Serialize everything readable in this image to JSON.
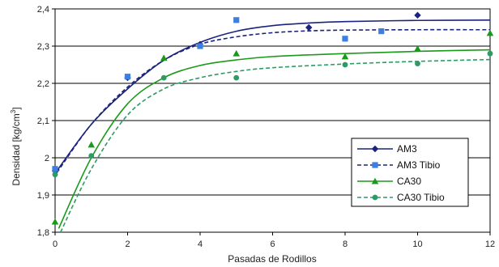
{
  "chart_data": {
    "type": "scatter",
    "title": "",
    "xlabel": "Pasadas de Rodillos",
    "ylabel": "Densidad [kg/cm",
    "ylabel_sup": "3",
    "ylabel_end": "]",
    "xlim": [
      0,
      12
    ],
    "ylim": [
      1.8,
      2.4
    ],
    "xticks": [
      0,
      2,
      4,
      6,
      8,
      10,
      12
    ],
    "yticks": [
      1.8,
      1.9,
      2.0,
      2.1,
      2.2,
      2.3,
      2.4
    ],
    "xtick_labels": [
      "0",
      "2",
      "4",
      "6",
      "8",
      "10",
      "12"
    ],
    "ytick_labels": [
      "1,8",
      "1,9",
      "2",
      "2,1",
      "2,2",
      "2,3",
      "2,4"
    ],
    "grid": "horizontal",
    "legend_position": "right",
    "series": [
      {
        "name": "AM3",
        "marker": "diamond",
        "color": "#1a237e",
        "line_style": "solid",
        "points": [
          [
            0,
            1.965
          ],
          [
            2,
            2.215
          ],
          [
            4,
            2.305
          ],
          [
            7,
            2.35
          ],
          [
            10,
            2.383
          ]
        ],
        "fit": [
          [
            0.05,
            1.965
          ],
          [
            1,
            2.09
          ],
          [
            2,
            2.185
          ],
          [
            3,
            2.262
          ],
          [
            4,
            2.31
          ],
          [
            5,
            2.34
          ],
          [
            6,
            2.355
          ],
          [
            7,
            2.362
          ],
          [
            8,
            2.366
          ],
          [
            10,
            2.369
          ],
          [
            12,
            2.37
          ]
        ]
      },
      {
        "name": "AM3 Tibio",
        "marker": "square",
        "color": "#3d7fe0",
        "line_style": "dashed",
        "line_color": "#1a237e",
        "points": [
          [
            0,
            1.97
          ],
          [
            2,
            2.218
          ],
          [
            4,
            2.3
          ],
          [
            5,
            2.37
          ],
          [
            8,
            2.32
          ],
          [
            9,
            2.34
          ]
        ],
        "fit": [
          [
            0.05,
            1.96
          ],
          [
            1,
            2.09
          ],
          [
            2,
            2.19
          ],
          [
            3,
            2.262
          ],
          [
            4,
            2.305
          ],
          [
            5,
            2.325
          ],
          [
            6,
            2.336
          ],
          [
            7,
            2.341
          ],
          [
            8,
            2.343
          ],
          [
            10,
            2.344
          ],
          [
            12,
            2.344
          ]
        ]
      },
      {
        "name": "CA30",
        "marker": "triangle",
        "color": "#1a9a1a",
        "line_style": "solid",
        "points": [
          [
            0,
            1.828
          ],
          [
            1,
            2.035
          ],
          [
            3,
            2.268
          ],
          [
            5,
            2.28
          ],
          [
            8,
            2.272
          ],
          [
            10,
            2.293
          ],
          [
            12,
            2.335
          ]
        ],
        "fit": [
          [
            0.1,
            1.81
          ],
          [
            1,
            2.0
          ],
          [
            2,
            2.145
          ],
          [
            3,
            2.215
          ],
          [
            4,
            2.248
          ],
          [
            5,
            2.263
          ],
          [
            6,
            2.272
          ],
          [
            8,
            2.28
          ],
          [
            10,
            2.286
          ],
          [
            12,
            2.29
          ]
        ]
      },
      {
        "name": "CA30 Tibio",
        "marker": "circle",
        "color": "#2e9a64",
        "line_style": "dashed",
        "points": [
          [
            0,
            1.955
          ],
          [
            1,
            2.005
          ],
          [
            3,
            2.215
          ],
          [
            5,
            2.215
          ],
          [
            8,
            2.25
          ],
          [
            10,
            2.253
          ],
          [
            12,
            2.28
          ]
        ],
        "fit": [
          [
            0.15,
            1.8
          ],
          [
            1,
            1.97
          ],
          [
            2,
            2.115
          ],
          [
            3,
            2.185
          ],
          [
            4,
            2.215
          ],
          [
            5,
            2.232
          ],
          [
            6,
            2.242
          ],
          [
            8,
            2.252
          ],
          [
            10,
            2.259
          ],
          [
            12,
            2.264
          ]
        ]
      }
    ]
  }
}
